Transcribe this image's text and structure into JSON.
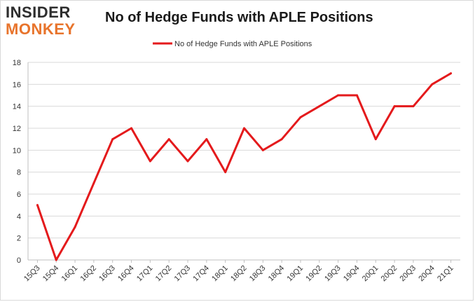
{
  "logo": {
    "line1": "INSIDER",
    "line2": "MONKEY"
  },
  "chart_data": {
    "type": "line",
    "title": "No of Hedge Funds with APLE Positions",
    "xlabel": "",
    "ylabel": "",
    "categories": [
      "15Q3",
      "15Q4",
      "16Q1",
      "16Q2",
      "16Q3",
      "16Q4",
      "17Q1",
      "17Q2",
      "17Q3",
      "17Q4",
      "18Q1",
      "18Q2",
      "18Q3",
      "18Q4",
      "19Q1",
      "19Q2",
      "19Q3",
      "19Q4",
      "20Q1",
      "20Q2",
      "20Q3",
      "20Q4",
      "21Q1"
    ],
    "series": [
      {
        "name": "No of Hedge Funds with APLE Positions",
        "values": [
          5,
          0,
          3,
          7,
          11,
          12,
          9,
          11,
          9,
          11,
          8,
          12,
          10,
          11,
          13,
          14,
          15,
          15,
          11,
          14,
          14,
          16,
          17
        ],
        "color": "#e41a1c"
      }
    ],
    "ylim": [
      0,
      18
    ],
    "yticks": [
      0,
      2,
      4,
      6,
      8,
      10,
      12,
      14,
      16,
      18
    ],
    "grid": true,
    "legend": "top-center"
  }
}
